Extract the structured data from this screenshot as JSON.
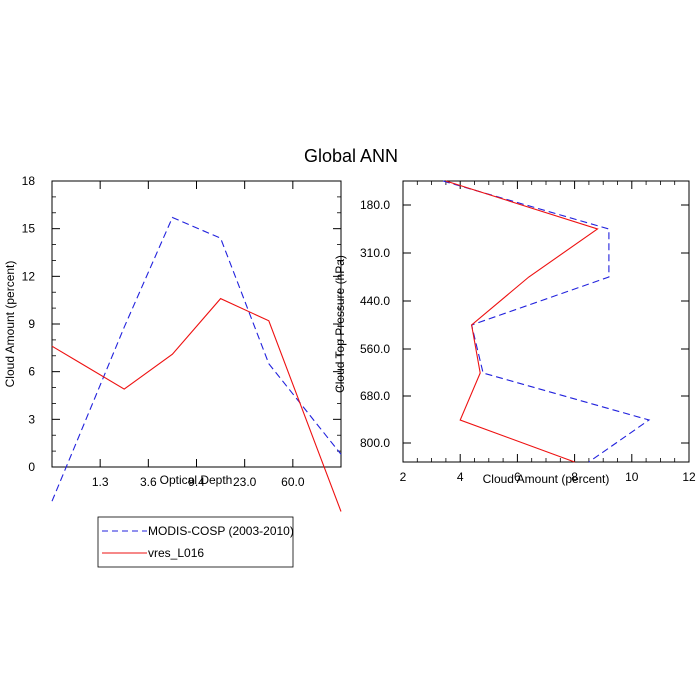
{
  "title": "Global ANN",
  "chart_data": [
    {
      "type": "line",
      "xlabel": "Optical Depth",
      "ylabel": "Cloud Amount (percent)",
      "x_categories": [
        "",
        "1.3",
        "3.6",
        "9.4",
        "23.0",
        "60.0",
        ""
      ],
      "x_tick_labels": [
        "1.3",
        "3.6",
        "9.4",
        "23.0",
        "60.0"
      ],
      "y_ticks": [
        "0",
        "3",
        "6",
        "9",
        "12",
        "15",
        "18"
      ],
      "ylim": [
        0,
        18
      ],
      "series": [
        {
          "name": "MODIS-COSP (2003-2010)",
          "color": "#2222dd",
          "dash": true,
          "values": [
            1.5,
            8.8,
            15.7,
            14.4,
            6.5,
            2.7
          ]
        },
        {
          "name": "vres_L016",
          "color": "#ee1111",
          "dash": false,
          "values": [
            6.7,
            4.9,
            7.1,
            10.6,
            9.2,
            1.2
          ]
        }
      ]
    },
    {
      "type": "line",
      "xlabel": "Cloud Amount (percent)",
      "ylabel": "Cloud Top Pressure (hPa)",
      "x_ticks": [
        "2",
        "4",
        "6",
        "8",
        "10",
        "12"
      ],
      "xlim": [
        2,
        12
      ],
      "y_tick_labels": [
        "180.0",
        "310.0",
        "440.0",
        "560.0",
        "680.0",
        "800.0"
      ],
      "y_categories": [
        "",
        "180.0",
        "310.0",
        "440.0",
        "560.0",
        "680.0",
        "800.0",
        ""
      ],
      "series": [
        {
          "name": "MODIS-COSP (2003-2010)",
          "color": "#2222dd",
          "dash": true,
          "values": [
            3.4,
            9.2,
            9.2,
            4.4,
            4.8,
            10.6,
            8.5
          ]
        },
        {
          "name": "vres_L016",
          "color": "#ee1111",
          "dash": false,
          "values": [
            3.5,
            8.8,
            6.4,
            4.4,
            4.7,
            4.0,
            8.0
          ]
        }
      ]
    }
  ],
  "legend": {
    "items": [
      {
        "label": "MODIS-COSP (2003-2010)",
        "color": "#2222dd",
        "dash": true
      },
      {
        "label": "vres_L016",
        "color": "#ee1111",
        "dash": false
      }
    ]
  }
}
